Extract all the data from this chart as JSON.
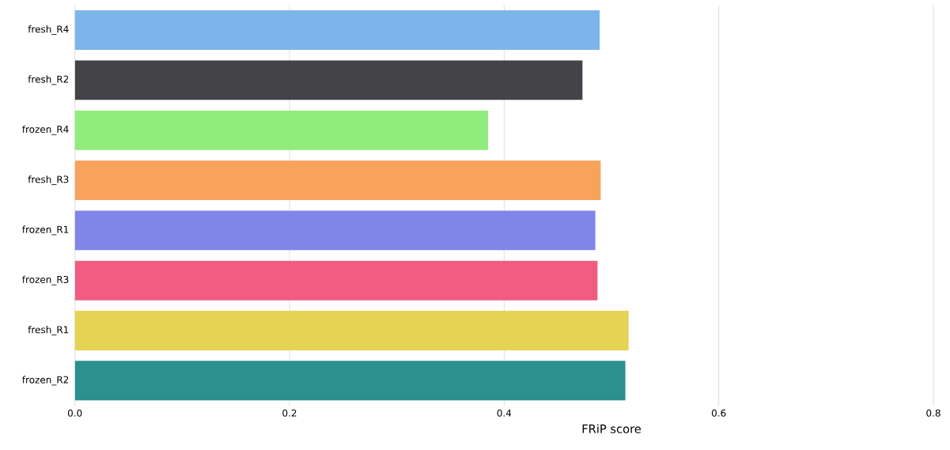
{
  "chart_data": {
    "type": "bar",
    "orientation": "horizontal",
    "xlabel": "FRiP score",
    "categories": [
      "fresh_R4",
      "fresh_R2",
      "frozen_R4",
      "fresh_R3",
      "frozen_R1",
      "frozen_R3",
      "fresh_R1",
      "frozen_R2"
    ],
    "values": [
      0.489,
      0.473,
      0.385,
      0.49,
      0.485,
      0.487,
      0.516,
      0.513
    ],
    "colors": [
      "#7cb5ec",
      "#434348",
      "#90ed7d",
      "#f7a35c",
      "#8085e9",
      "#f15c80",
      "#e4d354",
      "#2b908f"
    ],
    "xlim": [
      0,
      0.8
    ],
    "xticks": [
      {
        "value": 0,
        "label": "0.0"
      },
      0.2,
      0.4,
      0.6,
      0.8
    ],
    "grid": "x"
  }
}
